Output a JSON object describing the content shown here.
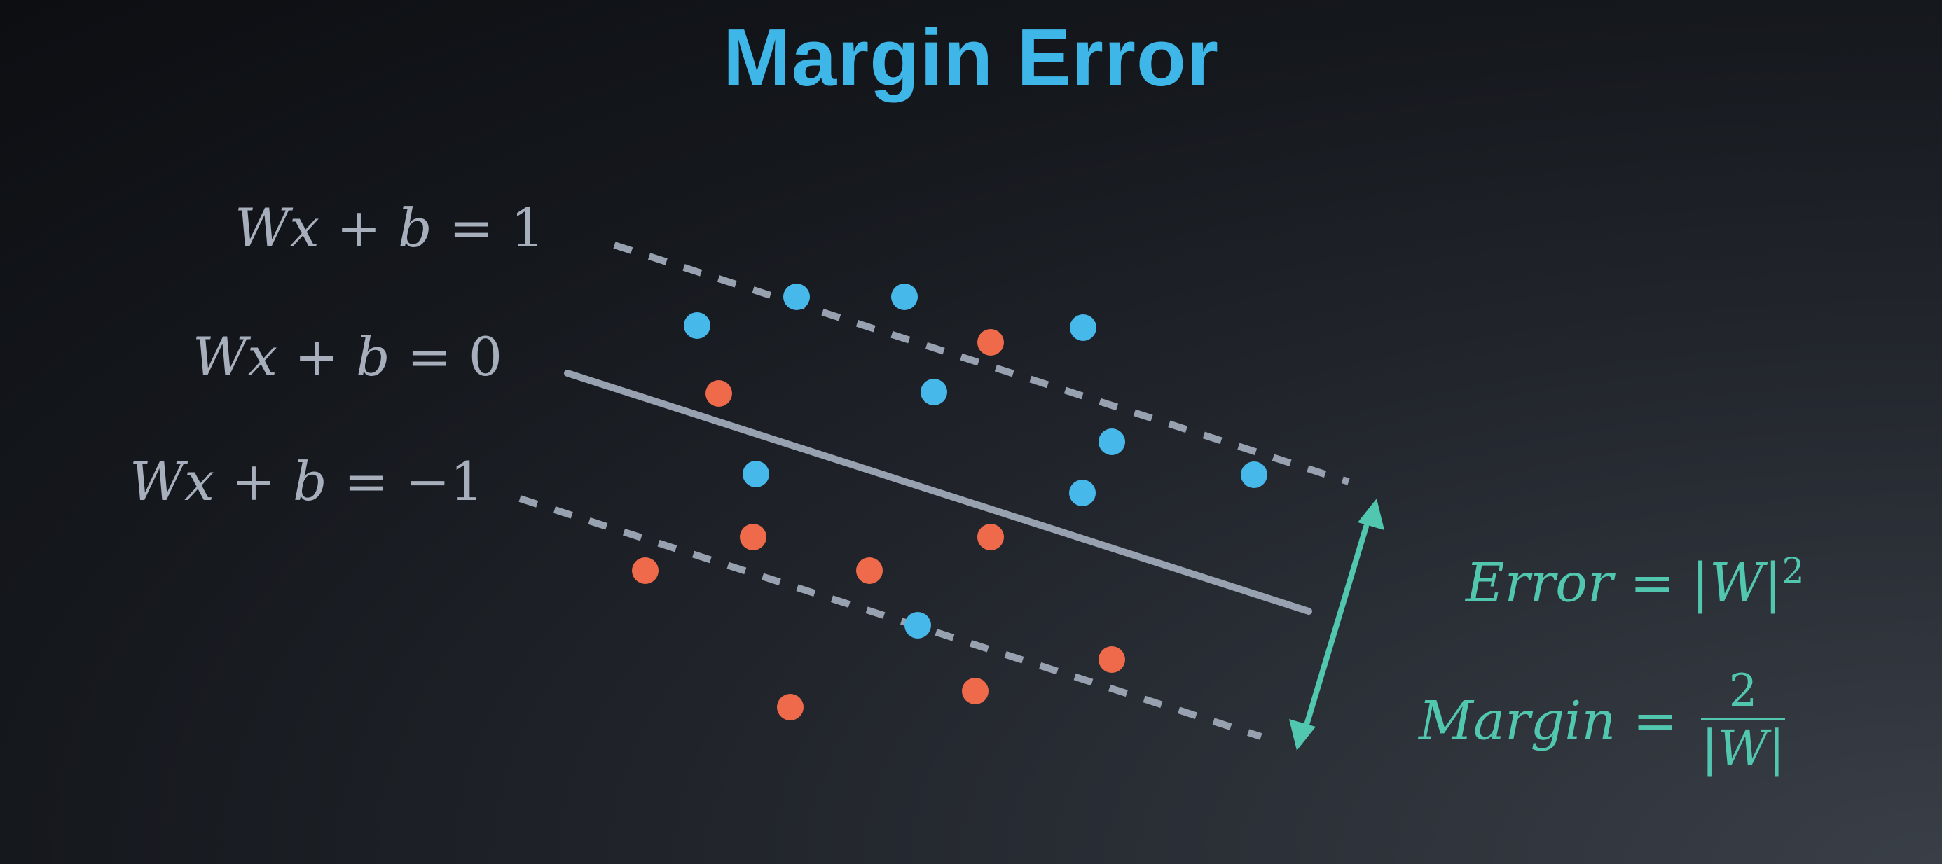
{
  "title": "Margin Error",
  "colors": {
    "title": "#3fb6e8",
    "line_labels": "#a7afbd",
    "lines": "#98a1b0",
    "blue_point": "#46b8ea",
    "red_point": "#ef6a4a",
    "formula": "#52c7b0",
    "arrow": "#52c7b0"
  },
  "line_labels": {
    "top": {
      "lhs": "Wx",
      "op": "+",
      "b": "b",
      "eq": "=",
      "rhs": "1"
    },
    "middle": {
      "lhs": "Wx",
      "op": "+",
      "b": "b",
      "eq": "=",
      "rhs": "0"
    },
    "bottom": {
      "lhs": "Wx",
      "op": "+",
      "b": "b",
      "eq": "=",
      "rhs": "−1"
    }
  },
  "formulas": {
    "error": {
      "lhs": "Error",
      "eq": "=",
      "rhs": "|W|",
      "exp": "2"
    },
    "margin": {
      "lhs": "Margin",
      "eq": "=",
      "numerator": "2",
      "denominator": "|W|"
    }
  },
  "icons": {
    "margin_arrow": "double-headed-arrow-icon"
  }
}
